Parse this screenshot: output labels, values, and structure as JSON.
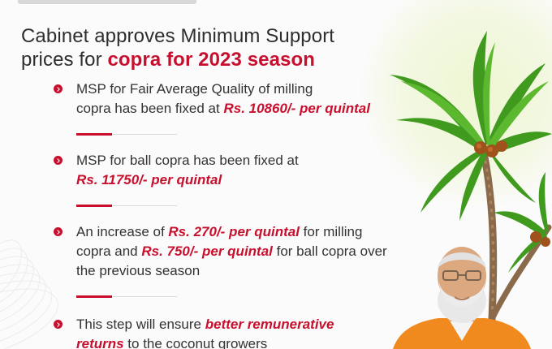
{
  "headline": {
    "line1": "Cabinet approves Minimum Support",
    "line2_prefix": "prices for ",
    "line2_highlight": "copra for 2023 season"
  },
  "bullets": [
    {
      "text_a": "MSP for Fair Average Quality of milling",
      "text_b": "copra has been fixed at ",
      "em_a": "Rs. 10860/- per quintal"
    },
    {
      "text_a": "MSP for ball copra has been fixed at",
      "em_a": "Rs. 11750/- per quintal"
    },
    {
      "text_a": "An increase of ",
      "em_a": "Rs. 270/- per quintal",
      "text_b": " for milling",
      "text_c": "copra and ",
      "em_b": "Rs. 750/- per quintal",
      "text_d": " for ball copra over",
      "text_e": "the previous season"
    },
    {
      "text_a": "This step will ensure ",
      "em_a": "better remunerative",
      "em_b": "returns",
      "text_b": " to the coconut growers"
    }
  ],
  "colors": {
    "accent": "#c8102e",
    "text": "#333333",
    "palm_green": "#3f9a1e",
    "trunk": "#8a6a4a"
  },
  "icons": {
    "bullet": "chevron-right-circle-icon",
    "palm": "coconut-palm-illustration",
    "person": "person-photo"
  }
}
